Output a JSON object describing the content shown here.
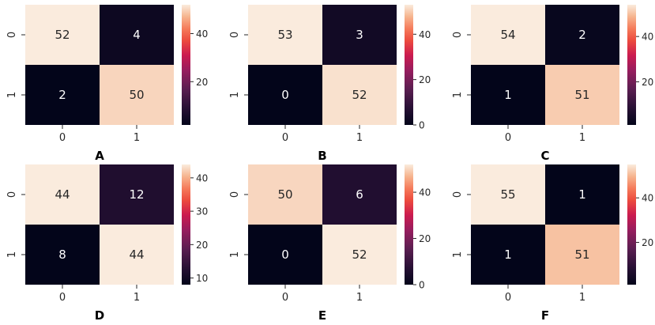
{
  "figure": {
    "cmap_stops": [
      [
        0.0,
        "#03051a"
      ],
      [
        0.15,
        "#2a1136"
      ],
      [
        0.3,
        "#5b1e51"
      ],
      [
        0.45,
        "#951d5e"
      ],
      [
        0.58,
        "#cb1b4f"
      ],
      [
        0.7,
        "#ec4a3e"
      ],
      [
        0.8,
        "#f57a5a"
      ],
      [
        0.9,
        "#f6b48e"
      ],
      [
        1.0,
        "#faebdd"
      ]
    ],
    "text_light": "#ffffff",
    "text_dark": "#262626"
  },
  "chart_data": [
    {
      "type": "heatmap",
      "title": "A",
      "x_ticks": [
        "0",
        "1"
      ],
      "y_ticks": [
        "0",
        "1"
      ],
      "values": [
        [
          52,
          4
        ],
        [
          2,
          50
        ]
      ],
      "vmin": 2,
      "vmax": 52,
      "colorbar_ticks": [
        20,
        40
      ]
    },
    {
      "type": "heatmap",
      "title": "B",
      "x_ticks": [
        "0",
        "1"
      ],
      "y_ticks": [
        "0",
        "1"
      ],
      "values": [
        [
          53,
          3
        ],
        [
          0,
          52
        ]
      ],
      "vmin": 0,
      "vmax": 53,
      "colorbar_ticks": [
        0,
        20,
        40
      ]
    },
    {
      "type": "heatmap",
      "title": "C",
      "x_ticks": [
        "0",
        "1"
      ],
      "y_ticks": [
        "0",
        "1"
      ],
      "values": [
        [
          54,
          2
        ],
        [
          1,
          51
        ]
      ],
      "vmin": 1,
      "vmax": 54,
      "colorbar_ticks": [
        20,
        40
      ]
    },
    {
      "type": "heatmap",
      "title": "D",
      "x_ticks": [
        "0",
        "1"
      ],
      "y_ticks": [
        "0",
        "1"
      ],
      "values": [
        [
          44,
          12
        ],
        [
          8,
          44
        ]
      ],
      "vmin": 8,
      "vmax": 44,
      "colorbar_ticks": [
        10,
        20,
        30,
        40
      ]
    },
    {
      "type": "heatmap",
      "title": "E",
      "x_ticks": [
        "0",
        "1"
      ],
      "y_ticks": [
        "0",
        "1"
      ],
      "values": [
        [
          50,
          6
        ],
        [
          0,
          52
        ]
      ],
      "vmin": 0,
      "vmax": 52,
      "colorbar_ticks": [
        0,
        20,
        40
      ]
    },
    {
      "type": "heatmap",
      "title": "F",
      "x_ticks": [
        "0",
        "1"
      ],
      "y_ticks": [
        "0",
        "1"
      ],
      "values": [
        [
          55,
          1
        ],
        [
          1,
          51
        ]
      ],
      "vmin": 1,
      "vmax": 55,
      "colorbar_ticks": [
        20,
        40
      ]
    }
  ]
}
